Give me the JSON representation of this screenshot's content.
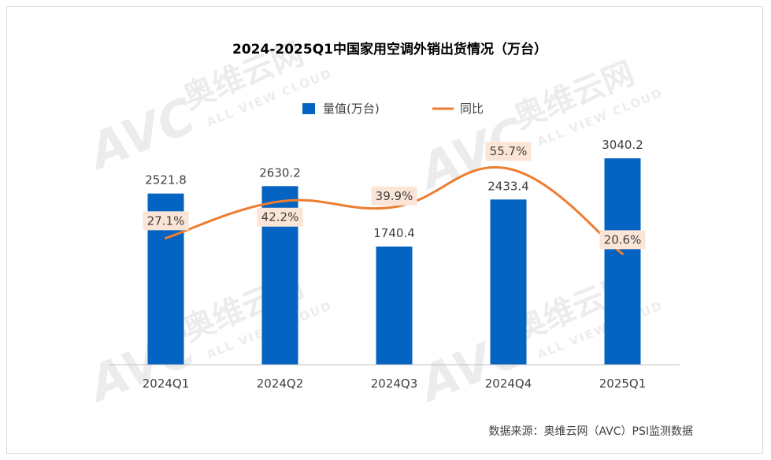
{
  "chart_data": {
    "type": "bar",
    "title": "2024-2025Q1中国家用空调外销出货情况（万台）",
    "categories": [
      "2024Q1",
      "2024Q2",
      "2024Q3",
      "2024Q4",
      "2025Q1"
    ],
    "series": [
      {
        "name": "量值(万台)",
        "type": "bar",
        "values": [
          2521.8,
          2630.2,
          1740.4,
          2433.4,
          3040.2
        ],
        "labels": [
          "2521.8",
          "2630.2",
          "1740.4",
          "2433.4",
          "3040.2"
        ],
        "color": "#0563c1"
      },
      {
        "name": "同比",
        "type": "line",
        "values": [
          27.1,
          42.2,
          39.9,
          55.7,
          20.6
        ],
        "labels": [
          "27.1%",
          "42.2%",
          "39.9%",
          "55.7%",
          "20.6%"
        ],
        "color": "#ed7d31"
      }
    ],
    "ylim": [
      0,
      3400
    ],
    "y2lim": [
      -25,
      70
    ],
    "legend": "top-center",
    "grid": false
  },
  "source": "数据来源：奥维云网（AVC）PSI监测数据",
  "watermark": {
    "brand": "AVC",
    "cn": "奥维云网",
    "en": "ALL VIEW CLOUD"
  },
  "colors": {
    "label_bg": "#fbe5d6",
    "text": "#404040",
    "axis": "#bfbfbf"
  }
}
